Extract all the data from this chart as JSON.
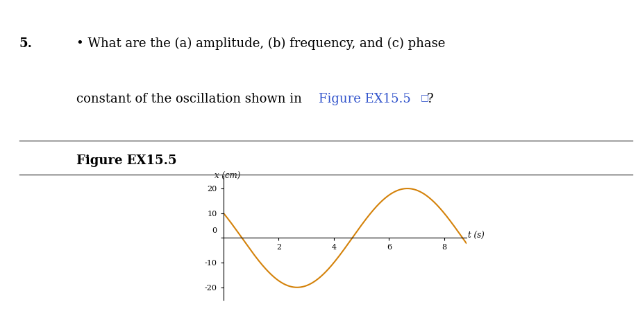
{
  "question_number": "5.",
  "line1_text": " What are the (a) amplitude, (b) frequency, and (c) phase",
  "line2_pre": "constant of the oscillation shown in ",
  "link_text": "Figure EX15.5",
  "link_symbol": "□",
  "end_text": "?",
  "figure_label": "Figure EX15.5",
  "ylabel": "x (cm)",
  "xlabel": "t (s)",
  "yticks": [
    -20,
    -10,
    0,
    10,
    20
  ],
  "xticks": [
    2,
    4,
    6,
    8
  ],
  "xlim": [
    0,
    8.8
  ],
  "ylim": [
    -25,
    25
  ],
  "amplitude": 20,
  "period": 8,
  "phi0_numerator": 5,
  "phi0_denominator": 6,
  "curve_color": "#D4820A",
  "bg_color": "#FFFFFF",
  "text_color": "#000000",
  "link_color": "#3355CC",
  "question_fontsize": 13,
  "figure_label_fontsize": 13,
  "axis_label_fontsize": 8.5,
  "tick_fontsize": 8,
  "separator_color": "#555555",
  "bullet": "•"
}
